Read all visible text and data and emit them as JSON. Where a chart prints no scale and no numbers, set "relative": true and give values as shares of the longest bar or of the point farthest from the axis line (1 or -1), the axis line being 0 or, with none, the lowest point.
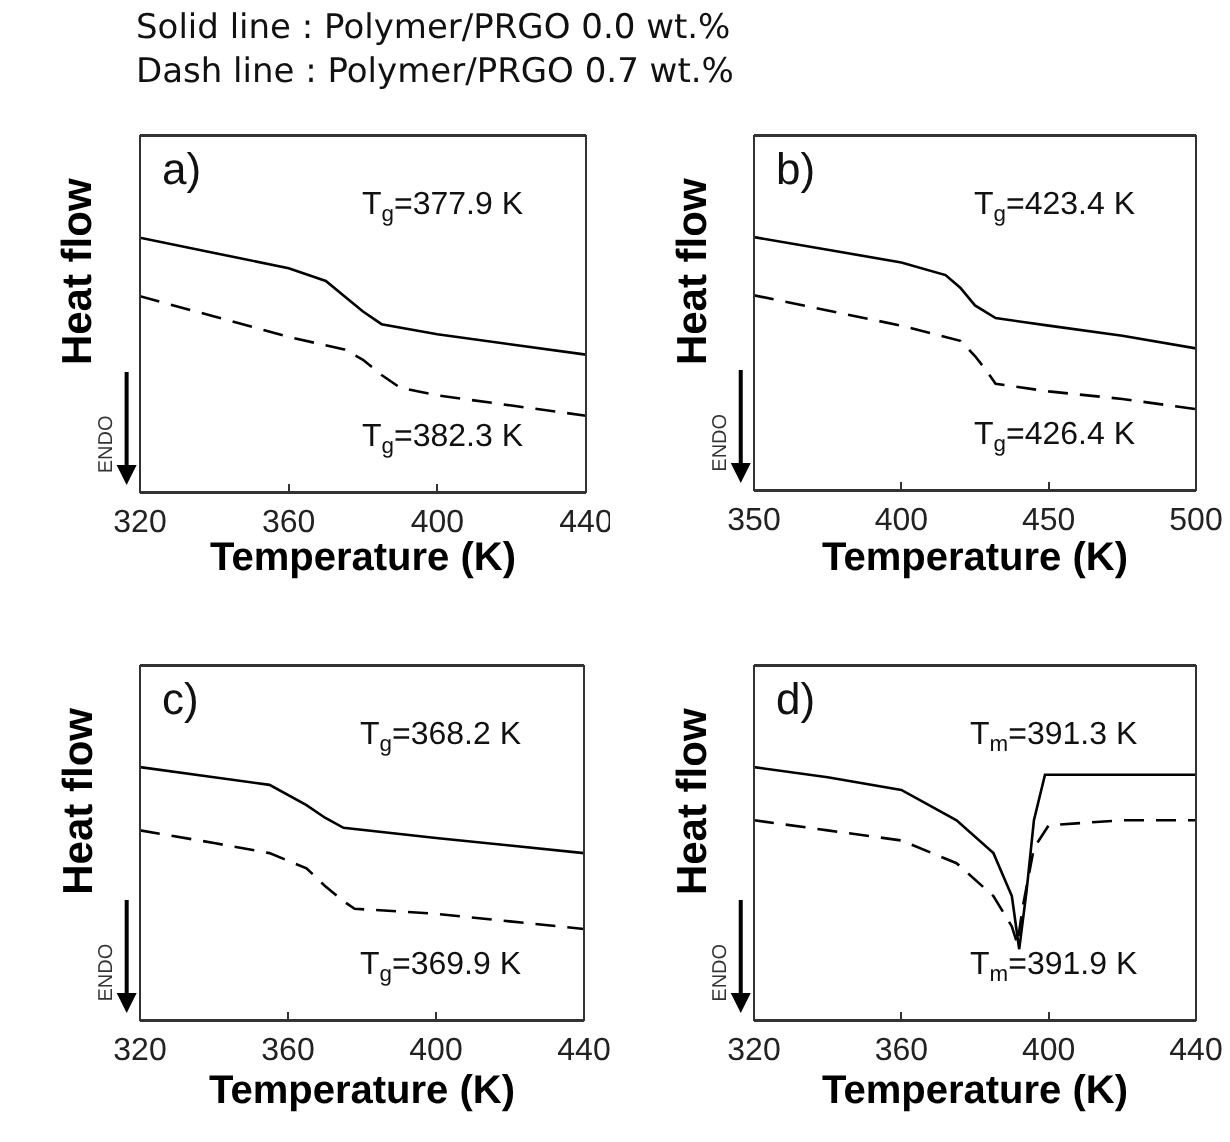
{
  "chart_data": [
    {
      "type": "line",
      "title": "Solid line : Polymer/PRGO 0.0 wt.%",
      "subtitle": "Dash line : Polymer/PRGO 0.7 wt.%",
      "relative": true,
      "xlabel": "Temperature (K)",
      "ylabel": "Heat flow",
      "xlim": [
        320,
        440
      ],
      "xticks": [
        320,
        360,
        400,
        440
      ],
      "grid": false,
      "annotations": [
        "a)",
        "ENDO",
        "T$_{g}$=377.9 K",
        "T$_{g}$=382.3 K"
      ],
      "series": [
        {
          "color": "#000000",
          "line_style": "solid",
          "x": [
            320,
            340,
            360,
            370,
            375,
            380,
            385,
            400,
            420,
            440
          ],
          "values": [
            1.0,
            0.94,
            0.88,
            0.83,
            0.77,
            0.71,
            0.66,
            0.62,
            0.58,
            0.54
          ]
        },
        {
          "color": "#000000",
          "line_style": "dashed",
          "x": [
            320,
            340,
            360,
            375,
            380,
            385,
            390,
            400,
            420,
            440
          ],
          "values": [
            0.77,
            0.69,
            0.61,
            0.56,
            0.52,
            0.46,
            0.41,
            0.38,
            0.34,
            0.3
          ]
        }
      ]
    },
    {
      "type": "line",
      "relative": true,
      "xlabel": "Temperature (K)",
      "ylabel": "Heat flow",
      "xlim": [
        350,
        500
      ],
      "xticks": [
        350,
        400,
        450,
        500
      ],
      "grid": false,
      "annotations": [
        "b)",
        "ENDO",
        "T$_{g}$=423.4 K",
        "T$_{g}$=426.4 K"
      ],
      "series": [
        {
          "color": "#000000",
          "line_style": "solid",
          "x": [
            350,
            375,
            400,
            415,
            420,
            425,
            432,
            450,
            475,
            500
          ],
          "values": [
            1.0,
            0.95,
            0.9,
            0.85,
            0.8,
            0.73,
            0.68,
            0.65,
            0.61,
            0.56
          ]
        },
        {
          "color": "#000000",
          "line_style": "dashed",
          "x": [
            350,
            375,
            400,
            420,
            425,
            429,
            432,
            450,
            475,
            500
          ],
          "values": [
            0.77,
            0.71,
            0.65,
            0.59,
            0.53,
            0.47,
            0.42,
            0.39,
            0.36,
            0.32
          ]
        }
      ]
    },
    {
      "type": "line",
      "relative": true,
      "xlabel": "Temperature (K)",
      "ylabel": "Heat flow",
      "xlim": [
        320,
        440
      ],
      "xticks": [
        320,
        360,
        400,
        440
      ],
      "grid": false,
      "annotations": [
        "c)",
        "ENDO",
        "T$_{g}$=368.2 K",
        "T$_{g}$=369.9 K"
      ],
      "series": [
        {
          "color": "#000000",
          "line_style": "solid",
          "x": [
            320,
            340,
            355,
            365,
            370,
            375,
            400,
            420,
            440
          ],
          "values": [
            1.0,
            0.96,
            0.93,
            0.85,
            0.8,
            0.76,
            0.72,
            0.69,
            0.66
          ]
        },
        {
          "color": "#000000",
          "line_style": "dashed",
          "x": [
            320,
            340,
            355,
            365,
            370,
            375,
            378,
            400,
            420,
            440
          ],
          "values": [
            0.75,
            0.7,
            0.66,
            0.6,
            0.53,
            0.47,
            0.44,
            0.42,
            0.39,
            0.36
          ]
        }
      ]
    },
    {
      "type": "line",
      "relative": true,
      "xlabel": "Temperature (K)",
      "ylabel": "Heat flow",
      "xlim": [
        320,
        440
      ],
      "xticks": [
        320,
        360,
        400,
        440
      ],
      "grid": false,
      "annotations": [
        "d)",
        "ENDO",
        "T$_{m}$=391.3 K",
        "T$_{m}$=391.9 K"
      ],
      "series": [
        {
          "color": "#000000",
          "line_style": "solid",
          "x": [
            320,
            340,
            360,
            375,
            385,
            390,
            392,
            394,
            396,
            399,
            420,
            440
          ],
          "values": [
            1.0,
            0.96,
            0.91,
            0.79,
            0.66,
            0.49,
            0.28,
            0.51,
            0.79,
            0.97,
            0.97,
            0.97
          ]
        },
        {
          "color": "#000000",
          "line_style": "dashed",
          "x": [
            320,
            340,
            360,
            375,
            385,
            390,
            391.5,
            393,
            396,
            400,
            420,
            440
          ],
          "values": [
            0.79,
            0.75,
            0.71,
            0.62,
            0.49,
            0.37,
            0.3,
            0.45,
            0.68,
            0.77,
            0.79,
            0.79
          ]
        }
      ]
    }
  ]
}
